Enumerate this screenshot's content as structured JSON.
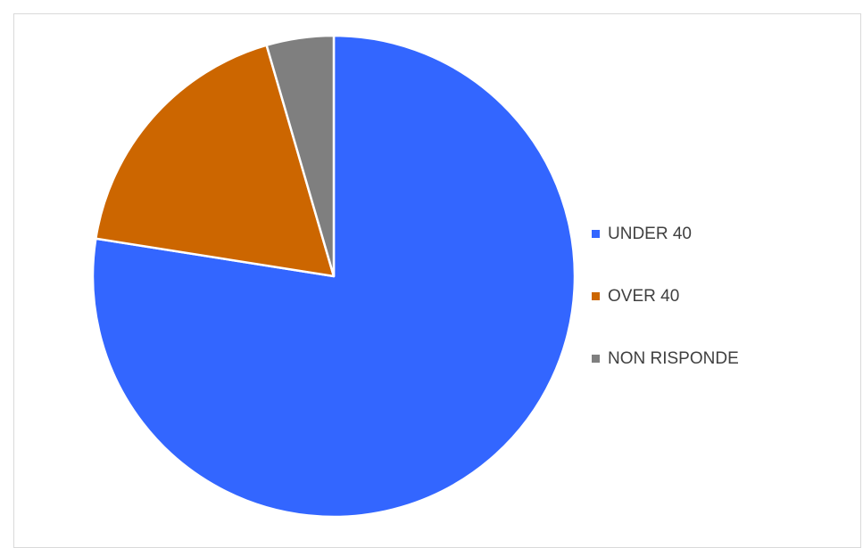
{
  "chart_data": {
    "type": "pie",
    "title": "",
    "categories": [
      "UNDER 40",
      "OVER 40",
      "NON RISPONDE"
    ],
    "values": [
      77.5,
      18,
      4.5
    ],
    "colors": [
      "#3366ff",
      "#cc6600",
      "#7f7f7f"
    ],
    "start_angle_deg": 0,
    "direction": "clockwise",
    "legend": {
      "position": "right",
      "entries": [
        "UNDER 40",
        "OVER 40",
        "NON RISPONDE"
      ]
    }
  }
}
